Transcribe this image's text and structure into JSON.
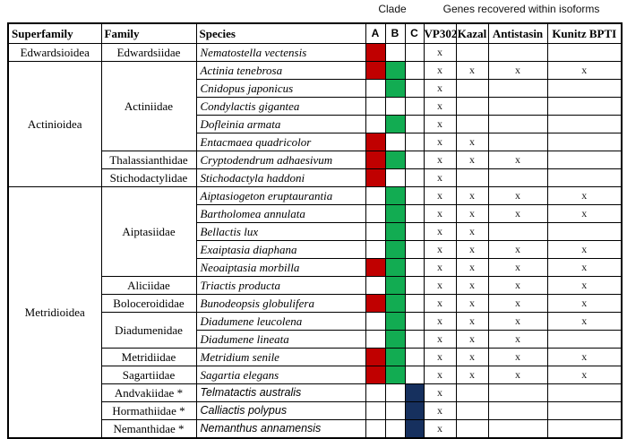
{
  "header_labels": {
    "clade": "Clade",
    "genes": "Genes recovered within isoforms"
  },
  "columns": {
    "superfamily": "Superfamily",
    "family": "Family",
    "species": "Species",
    "clades": [
      "A",
      "B",
      "C"
    ],
    "genes": [
      "VP302",
      "Kazal",
      "Antistasin",
      "Kunitz BPTI"
    ]
  },
  "colors": {
    "clade_a": "#c00000",
    "clade_b": "#12ac52",
    "clade_c": "#16305e",
    "border": "#000000"
  },
  "mark": "x",
  "rows": [
    {
      "superfamily": "Edwardsioidea",
      "superfamily_span": 1,
      "family": "Edwardsiidae",
      "family_span": 1,
      "species": "Nematostella vectensis",
      "species_font": "serif",
      "clades": [
        "A"
      ],
      "genes": [
        true,
        false,
        false,
        false
      ]
    },
    {
      "superfamily": "Actinioidea",
      "superfamily_span": 7,
      "family": "Actiniidae",
      "family_span": 5,
      "species": "Actinia tenebrosa",
      "species_font": "serif",
      "clades": [
        "A",
        "B"
      ],
      "genes": [
        true,
        true,
        true,
        true
      ]
    },
    {
      "species": "Cnidopus japonicus",
      "species_font": "serif",
      "clades": [
        "B"
      ],
      "genes": [
        true,
        false,
        false,
        false
      ]
    },
    {
      "species": "Condylactis gigantea",
      "species_font": "serif",
      "clades": [],
      "genes": [
        true,
        false,
        false,
        false
      ]
    },
    {
      "species": "Dofleinia armata",
      "species_font": "serif",
      "clades": [
        "B"
      ],
      "genes": [
        true,
        false,
        false,
        false
      ]
    },
    {
      "species": "Entacmaea quadricolor",
      "species_font": "serif",
      "clades": [
        "A"
      ],
      "genes": [
        true,
        true,
        false,
        false
      ]
    },
    {
      "family": "Thalassianthidae",
      "family_span": 1,
      "species": "Cryptodendrum adhaesivum",
      "species_font": "serif",
      "clades": [
        "A",
        "B"
      ],
      "genes": [
        true,
        true,
        true,
        false
      ]
    },
    {
      "family": "Stichodactylidae",
      "family_span": 1,
      "species": "Stichodactyla haddoni",
      "species_font": "serif",
      "clades": [
        "A"
      ],
      "genes": [
        true,
        false,
        false,
        false
      ]
    },
    {
      "superfamily": "Metridioidea",
      "superfamily_span": 14,
      "family": "Aiptasiidae",
      "family_span": 5,
      "species": "Aiptasiogeton eruptaurantia",
      "species_font": "serif",
      "clades": [
        "B"
      ],
      "genes": [
        true,
        true,
        true,
        true
      ]
    },
    {
      "species": "Bartholomea annulata",
      "species_font": "serif",
      "clades": [
        "B"
      ],
      "genes": [
        true,
        true,
        true,
        true
      ]
    },
    {
      "species": "Bellactis lux",
      "species_font": "serif",
      "clades": [
        "B"
      ],
      "genes": [
        true,
        true,
        false,
        false
      ]
    },
    {
      "species": "Exaiptasia diaphana",
      "species_font": "serif",
      "clades": [
        "B"
      ],
      "genes": [
        true,
        true,
        true,
        true
      ]
    },
    {
      "species": "Neoaiptasia morbilla",
      "species_font": "serif",
      "clades": [
        "A",
        "B"
      ],
      "genes": [
        true,
        true,
        true,
        true
      ]
    },
    {
      "family": "Aliciidae",
      "family_span": 1,
      "species": "Triactis producta",
      "species_font": "serif",
      "clades": [
        "B"
      ],
      "genes": [
        true,
        true,
        true,
        true
      ]
    },
    {
      "family": "Boloceroididae",
      "family_span": 1,
      "species": "Bunodeopsis globulifera",
      "species_font": "serif",
      "clades": [
        "A",
        "B"
      ],
      "genes": [
        true,
        true,
        true,
        true
      ]
    },
    {
      "family": "Diadumenidae",
      "family_span": 2,
      "species": "Diadumene leucolena",
      "species_font": "serif",
      "clades": [
        "B"
      ],
      "genes": [
        true,
        true,
        true,
        true
      ]
    },
    {
      "species": "Diadumene lineata",
      "species_font": "serif",
      "clades": [
        "B"
      ],
      "genes": [
        true,
        true,
        true,
        false
      ]
    },
    {
      "family": "Metridiidae",
      "family_span": 1,
      "species": "Metridium senile",
      "species_font": "serif",
      "clades": [
        "A",
        "B"
      ],
      "genes": [
        true,
        true,
        true,
        true
      ]
    },
    {
      "family": "Sagartiidae",
      "family_span": 1,
      "species": "Sagartia elegans",
      "species_font": "serif",
      "clades": [
        "A",
        "B"
      ],
      "genes": [
        true,
        true,
        true,
        true
      ]
    },
    {
      "family": "Andvakiidae *",
      "family_span": 1,
      "species": "Telmatactis australis",
      "species_font": "sans",
      "clades": [
        "C"
      ],
      "genes": [
        true,
        false,
        false,
        false
      ]
    },
    {
      "family": "Hormathiidae *",
      "family_span": 1,
      "species": "Calliactis polypus",
      "species_font": "sans",
      "clades": [
        "C"
      ],
      "genes": [
        true,
        false,
        false,
        false
      ]
    },
    {
      "family": "Nemanthidae *",
      "family_span": 1,
      "species": "Nemanthus annamensis",
      "species_font": "sans",
      "clades": [
        "C"
      ],
      "genes": [
        true,
        false,
        false,
        false
      ]
    }
  ]
}
